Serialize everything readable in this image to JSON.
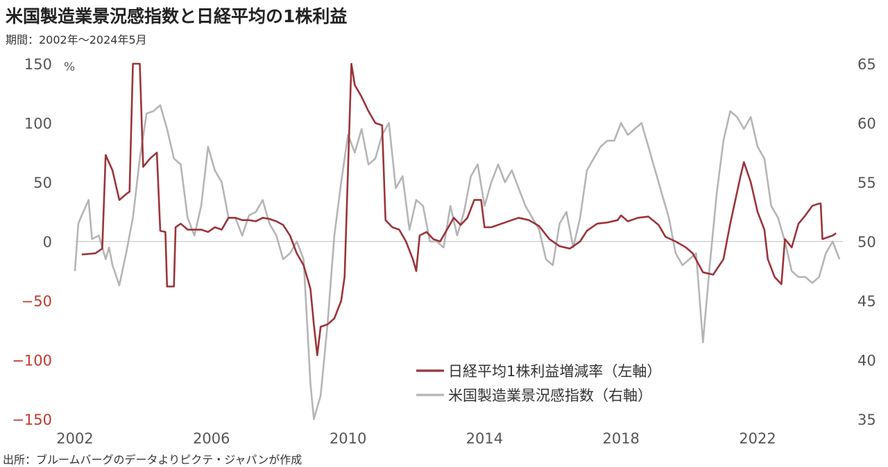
{
  "title": "米国製造業景況感指数と日経平均の1株利益",
  "subtitle": "期間：2002年～2024年5月",
  "source": "出所：ブルームバーグのデータよりピクテ・ジャパンが作成",
  "chart_data": {
    "type": "line",
    "left_axis": {
      "unit": "%",
      "ticks": [
        150,
        100,
        50,
        0,
        -50,
        -100,
        -150
      ],
      "tick_labels": [
        "150",
        "100",
        "50",
        "0",
        "−50",
        "−100",
        "−150"
      ],
      "range": [
        -150,
        150
      ]
    },
    "right_axis": {
      "ticks": [
        65,
        60,
        55,
        50,
        45,
        40,
        35
      ],
      "tick_labels": [
        "65",
        "60",
        "55",
        "50",
        "45",
        "40",
        "35"
      ],
      "range": [
        35,
        65
      ]
    },
    "x_axis": {
      "ticks": [
        2002,
        2006,
        2010,
        2014,
        2018,
        2022
      ],
      "tick_labels": [
        "2002",
        "2006",
        "2010",
        "2014",
        "2018",
        "2022"
      ],
      "range": [
        2002,
        2024.5
      ]
    },
    "series": [
      {
        "name": "日経平均1株利益増減率（左軸）",
        "axis": "left",
        "color": "#9b3339",
        "points": [
          [
            2002.2,
            -11
          ],
          [
            2002.6,
            -10
          ],
          [
            2002.8,
            -6
          ],
          [
            2002.9,
            73
          ],
          [
            2003.1,
            60
          ],
          [
            2003.3,
            35
          ],
          [
            2003.5,
            40
          ],
          [
            2003.6,
            42
          ],
          [
            2003.7,
            150
          ],
          [
            2003.8,
            150
          ],
          [
            2003.9,
            150
          ],
          [
            2004.0,
            63
          ],
          [
            2004.2,
            70
          ],
          [
            2004.4,
            75
          ],
          [
            2004.5,
            9
          ],
          [
            2004.65,
            8
          ],
          [
            2004.7,
            -38
          ],
          [
            2004.9,
            -38
          ],
          [
            2004.95,
            12
          ],
          [
            2005.1,
            15
          ],
          [
            2005.3,
            10
          ],
          [
            2005.5,
            10
          ],
          [
            2005.7,
            10
          ],
          [
            2005.9,
            8
          ],
          [
            2006.1,
            12
          ],
          [
            2006.3,
            10
          ],
          [
            2006.5,
            20
          ],
          [
            2006.7,
            20
          ],
          [
            2006.9,
            18
          ],
          [
            2007.1,
            18
          ],
          [
            2007.3,
            17
          ],
          [
            2007.5,
            20
          ],
          [
            2007.7,
            19
          ],
          [
            2007.9,
            17
          ],
          [
            2008.1,
            14
          ],
          [
            2008.3,
            5
          ],
          [
            2008.5,
            -10
          ],
          [
            2008.7,
            -20
          ],
          [
            2008.9,
            -40
          ],
          [
            2009.0,
            -70
          ],
          [
            2009.1,
            -96
          ],
          [
            2009.2,
            -72
          ],
          [
            2009.4,
            -70
          ],
          [
            2009.6,
            -65
          ],
          [
            2009.8,
            -50
          ],
          [
            2009.9,
            -30
          ],
          [
            2010.0,
            60
          ],
          [
            2010.1,
            150
          ],
          [
            2010.2,
            132
          ],
          [
            2010.4,
            122
          ],
          [
            2010.6,
            110
          ],
          [
            2010.8,
            100
          ],
          [
            2011.0,
            98
          ],
          [
            2011.1,
            18
          ],
          [
            2011.3,
            12
          ],
          [
            2011.5,
            10
          ],
          [
            2011.7,
            0
          ],
          [
            2011.9,
            -15
          ],
          [
            2012.0,
            -25
          ],
          [
            2012.1,
            5
          ],
          [
            2012.3,
            8
          ],
          [
            2012.5,
            2
          ],
          [
            2012.7,
            0
          ],
          [
            2012.9,
            10
          ],
          [
            2013.1,
            20
          ],
          [
            2013.3,
            14
          ],
          [
            2013.5,
            20
          ],
          [
            2013.7,
            35
          ],
          [
            2013.9,
            35
          ],
          [
            2014.0,
            12
          ],
          [
            2014.2,
            12
          ],
          [
            2014.5,
            15
          ],
          [
            2014.8,
            18
          ],
          [
            2015.0,
            20
          ],
          [
            2015.3,
            18
          ],
          [
            2015.6,
            13
          ],
          [
            2015.9,
            2
          ],
          [
            2016.2,
            -4
          ],
          [
            2016.5,
            -6
          ],
          [
            2016.8,
            0
          ],
          [
            2017.0,
            9
          ],
          [
            2017.3,
            15
          ],
          [
            2017.6,
            16
          ],
          [
            2017.9,
            18
          ],
          [
            2018.0,
            22
          ],
          [
            2018.2,
            17
          ],
          [
            2018.5,
            20
          ],
          [
            2018.8,
            21
          ],
          [
            2019.1,
            14
          ],
          [
            2019.3,
            4
          ],
          [
            2019.6,
            0
          ],
          [
            2019.9,
            -5
          ],
          [
            2020.1,
            -10
          ],
          [
            2020.4,
            -26
          ],
          [
            2020.7,
            -28
          ],
          [
            2021.0,
            -15
          ],
          [
            2021.2,
            15
          ],
          [
            2021.5,
            55
          ],
          [
            2021.6,
            67
          ],
          [
            2021.8,
            50
          ],
          [
            2022.0,
            25
          ],
          [
            2022.2,
            10
          ],
          [
            2022.3,
            -15
          ],
          [
            2022.5,
            -30
          ],
          [
            2022.7,
            -36
          ],
          [
            2022.8,
            2
          ],
          [
            2023.0,
            -5
          ],
          [
            2023.2,
            15
          ],
          [
            2023.4,
            22
          ],
          [
            2023.6,
            30
          ],
          [
            2023.8,
            32
          ],
          [
            2023.85,
            32
          ],
          [
            2023.9,
            2
          ],
          [
            2024.0,
            3
          ],
          [
            2024.2,
            5
          ],
          [
            2024.3,
            7
          ]
        ]
      },
      {
        "name": "米国製造業景況感指数（右軸）",
        "axis": "right",
        "color": "#b5b5b5",
        "points": [
          [
            2002.0,
            47.5
          ],
          [
            2002.1,
            51.5
          ],
          [
            2002.2,
            52.2
          ],
          [
            2002.4,
            53.5
          ],
          [
            2002.5,
            50.2
          ],
          [
            2002.7,
            50.5
          ],
          [
            2002.9,
            48.5
          ],
          [
            2003.0,
            49.5
          ],
          [
            2003.1,
            48.0
          ],
          [
            2003.3,
            46.3
          ],
          [
            2003.5,
            49.0
          ],
          [
            2003.7,
            52.0
          ],
          [
            2003.9,
            57.0
          ],
          [
            2004.1,
            60.8
          ],
          [
            2004.3,
            61.0
          ],
          [
            2004.5,
            61.5
          ],
          [
            2004.7,
            59.5
          ],
          [
            2004.9,
            57.0
          ],
          [
            2005.1,
            56.5
          ],
          [
            2005.3,
            52.0
          ],
          [
            2005.5,
            50.5
          ],
          [
            2005.7,
            53.0
          ],
          [
            2005.9,
            58.0
          ],
          [
            2006.1,
            56.0
          ],
          [
            2006.3,
            55.0
          ],
          [
            2006.5,
            52.0
          ],
          [
            2006.7,
            52.0
          ],
          [
            2006.9,
            50.5
          ],
          [
            2007.1,
            52.2
          ],
          [
            2007.3,
            52.5
          ],
          [
            2007.5,
            53.5
          ],
          [
            2007.7,
            51.5
          ],
          [
            2007.9,
            50.5
          ],
          [
            2008.1,
            48.5
          ],
          [
            2008.3,
            49.0
          ],
          [
            2008.5,
            50.0
          ],
          [
            2008.7,
            48.5
          ],
          [
            2008.9,
            38.0
          ],
          [
            2009.0,
            33.5
          ],
          [
            2009.2,
            37.0
          ],
          [
            2009.4,
            43.0
          ],
          [
            2009.6,
            50.5
          ],
          [
            2009.8,
            55.0
          ],
          [
            2010.0,
            59.0
          ],
          [
            2010.2,
            57.5
          ],
          [
            2010.4,
            59.5
          ],
          [
            2010.6,
            56.5
          ],
          [
            2010.8,
            57.0
          ],
          [
            2011.0,
            59.0
          ],
          [
            2011.2,
            60.0
          ],
          [
            2011.4,
            54.5
          ],
          [
            2011.6,
            55.5
          ],
          [
            2011.8,
            51.0
          ],
          [
            2012.0,
            53.5
          ],
          [
            2012.2,
            53.0
          ],
          [
            2012.4,
            50.0
          ],
          [
            2012.6,
            50.0
          ],
          [
            2012.8,
            49.5
          ],
          [
            2013.0,
            53.0
          ],
          [
            2013.2,
            50.5
          ],
          [
            2013.4,
            52.5
          ],
          [
            2013.6,
            55.5
          ],
          [
            2013.8,
            56.5
          ],
          [
            2014.0,
            53.0
          ],
          [
            2014.2,
            55.0
          ],
          [
            2014.4,
            56.5
          ],
          [
            2014.6,
            55.0
          ],
          [
            2014.8,
            56.0
          ],
          [
            2015.0,
            54.5
          ],
          [
            2015.2,
            53.0
          ],
          [
            2015.4,
            52.0
          ],
          [
            2015.6,
            51.0
          ],
          [
            2015.8,
            48.5
          ],
          [
            2016.0,
            48.0
          ],
          [
            2016.2,
            51.5
          ],
          [
            2016.4,
            52.5
          ],
          [
            2016.6,
            49.5
          ],
          [
            2016.8,
            52.0
          ],
          [
            2017.0,
            56.0
          ],
          [
            2017.2,
            57.0
          ],
          [
            2017.4,
            58.0
          ],
          [
            2017.6,
            58.5
          ],
          [
            2017.8,
            58.5
          ],
          [
            2018.0,
            60.0
          ],
          [
            2018.2,
            59.0
          ],
          [
            2018.4,
            59.5
          ],
          [
            2018.6,
            60.0
          ],
          [
            2018.8,
            58.0
          ],
          [
            2019.0,
            56.0
          ],
          [
            2019.2,
            54.0
          ],
          [
            2019.4,
            52.0
          ],
          [
            2019.6,
            49.0
          ],
          [
            2019.8,
            48.0
          ],
          [
            2020.0,
            48.5
          ],
          [
            2020.2,
            49.0
          ],
          [
            2020.4,
            41.5
          ],
          [
            2020.6,
            48.0
          ],
          [
            2020.8,
            54.0
          ],
          [
            2021.0,
            58.5
          ],
          [
            2021.2,
            61.0
          ],
          [
            2021.4,
            60.5
          ],
          [
            2021.6,
            59.5
          ],
          [
            2021.8,
            60.5
          ],
          [
            2022.0,
            58.0
          ],
          [
            2022.2,
            57.0
          ],
          [
            2022.4,
            53.0
          ],
          [
            2022.6,
            52.0
          ],
          [
            2022.8,
            50.0
          ],
          [
            2023.0,
            47.5
          ],
          [
            2023.2,
            47.0
          ],
          [
            2023.4,
            47.0
          ],
          [
            2023.6,
            46.5
          ],
          [
            2023.8,
            47.0
          ],
          [
            2024.0,
            49.0
          ],
          [
            2024.2,
            50.0
          ],
          [
            2024.4,
            48.5
          ]
        ]
      }
    ],
    "legend": {
      "position": "bottom-right",
      "entries": [
        {
          "label": "日経平均1株利益増減率（左軸）",
          "color": "#9b3339"
        },
        {
          "label": "米国製造業景況感指数（右軸）",
          "color": "#b5b5b5"
        }
      ]
    },
    "zero_line_color": "#cccccc"
  }
}
